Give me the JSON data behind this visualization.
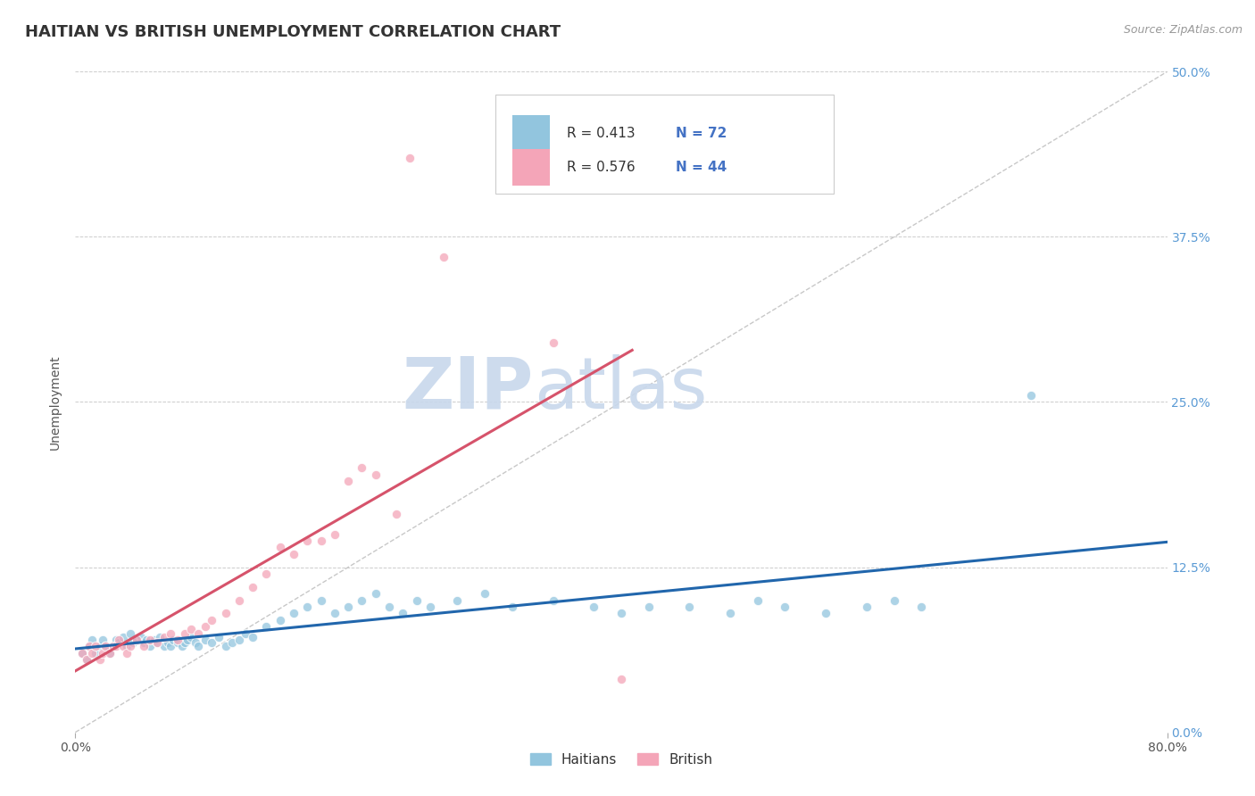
{
  "title": "HAITIAN VS BRITISH UNEMPLOYMENT CORRELATION CHART",
  "source": "Source: ZipAtlas.com",
  "ylabel": "Unemployment",
  "xlim": [
    0,
    0.8
  ],
  "ylim": [
    0,
    0.5
  ],
  "legend_haitian_R": "0.413",
  "legend_haitian_N": "72",
  "legend_british_R": "0.576",
  "legend_british_N": "44",
  "legend_label_haitian": "Haitians",
  "legend_label_british": "British",
  "color_haitian": "#92C5DE",
  "color_british": "#F4A5B8",
  "color_haitian_line": "#2166AC",
  "color_british_line": "#D6536B",
  "color_ref_line": "#C8C8C8",
  "watermark_zip": "ZIP",
  "watermark_atlas": "atlas",
  "watermark_color": "#D8E8F5",
  "background_color": "#FFFFFF",
  "title_fontsize": 13,
  "axis_fontsize": 10,
  "tick_fontsize": 10,
  "haitian_x": [
    0.005,
    0.008,
    0.01,
    0.012,
    0.015,
    0.018,
    0.02,
    0.022,
    0.025,
    0.028,
    0.03,
    0.032,
    0.035,
    0.038,
    0.04,
    0.042,
    0.045,
    0.048,
    0.05,
    0.052,
    0.055,
    0.058,
    0.06,
    0.062,
    0.065,
    0.068,
    0.07,
    0.072,
    0.075,
    0.078,
    0.08,
    0.082,
    0.085,
    0.088,
    0.09,
    0.095,
    0.1,
    0.105,
    0.11,
    0.115,
    0.12,
    0.125,
    0.13,
    0.14,
    0.15,
    0.16,
    0.17,
    0.18,
    0.19,
    0.2,
    0.21,
    0.22,
    0.23,
    0.24,
    0.25,
    0.26,
    0.28,
    0.3,
    0.32,
    0.35,
    0.38,
    0.4,
    0.42,
    0.45,
    0.48,
    0.5,
    0.52,
    0.55,
    0.58,
    0.6,
    0.62,
    0.7
  ],
  "haitian_y": [
    0.06,
    0.055,
    0.065,
    0.07,
    0.06,
    0.065,
    0.07,
    0.065,
    0.06,
    0.065,
    0.07,
    0.068,
    0.072,
    0.065,
    0.075,
    0.068,
    0.07,
    0.072,
    0.068,
    0.07,
    0.065,
    0.07,
    0.068,
    0.072,
    0.065,
    0.068,
    0.065,
    0.07,
    0.068,
    0.065,
    0.068,
    0.07,
    0.072,
    0.068,
    0.065,
    0.07,
    0.068,
    0.072,
    0.065,
    0.068,
    0.07,
    0.075,
    0.072,
    0.08,
    0.085,
    0.09,
    0.095,
    0.1,
    0.09,
    0.095,
    0.1,
    0.105,
    0.095,
    0.09,
    0.1,
    0.095,
    0.1,
    0.105,
    0.095,
    0.1,
    0.095,
    0.09,
    0.095,
    0.095,
    0.09,
    0.1,
    0.095,
    0.09,
    0.095,
    0.1,
    0.095,
    0.255
  ],
  "british_x": [
    0.005,
    0.008,
    0.01,
    0.012,
    0.015,
    0.018,
    0.02,
    0.022,
    0.025,
    0.028,
    0.03,
    0.032,
    0.035,
    0.038,
    0.04,
    0.045,
    0.05,
    0.055,
    0.06,
    0.065,
    0.07,
    0.075,
    0.08,
    0.085,
    0.09,
    0.095,
    0.1,
    0.11,
    0.12,
    0.13,
    0.14,
    0.15,
    0.16,
    0.17,
    0.18,
    0.19,
    0.2,
    0.21,
    0.22,
    0.235,
    0.245,
    0.27,
    0.35,
    0.4
  ],
  "british_y": [
    0.06,
    0.055,
    0.065,
    0.06,
    0.065,
    0.055,
    0.06,
    0.065,
    0.06,
    0.065,
    0.065,
    0.07,
    0.065,
    0.06,
    0.065,
    0.07,
    0.065,
    0.07,
    0.068,
    0.072,
    0.075,
    0.07,
    0.075,
    0.078,
    0.075,
    0.08,
    0.085,
    0.09,
    0.1,
    0.11,
    0.12,
    0.14,
    0.135,
    0.145,
    0.145,
    0.15,
    0.19,
    0.2,
    0.195,
    0.165,
    0.435,
    0.36,
    0.295,
    0.04
  ]
}
